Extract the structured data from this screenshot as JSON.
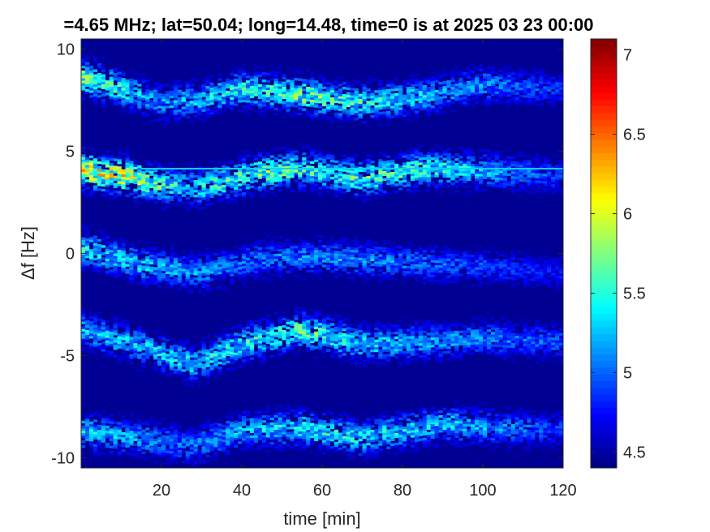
{
  "chart_data": {
    "type": "heatmap",
    "title": "=4.65 MHz;  lat=50.04; long=14.48, time=0 is at 2025 03 23 00:00",
    "xlabel": "time [min]",
    "ylabel": "Δf [Hz]",
    "xlim": [
      0,
      120
    ],
    "ylim": [
      -10.5,
      10.5
    ],
    "x_ticks": [
      20,
      40,
      60,
      80,
      100,
      120
    ],
    "x_tick_labels": [
      "20",
      "40",
      "60",
      "80",
      "100",
      "120"
    ],
    "y_ticks": [
      -10,
      -5,
      0,
      5,
      10
    ],
    "y_tick_labels": [
      "-10",
      "-5",
      "0",
      "5",
      "10"
    ],
    "colorbar": {
      "colormap": "jet",
      "clim": [
        4.4,
        7.1
      ],
      "ticks": [
        4.5,
        5,
        5.5,
        6,
        6.5,
        7
      ],
      "tick_labels": [
        "4.5",
        "5",
        "5.5",
        "6",
        "6.5",
        "7"
      ]
    },
    "background_value": 4.45,
    "carrier_line": {
      "df": 4.15,
      "t_start": 15,
      "t_end": 120,
      "value": 5.3
    },
    "bands": [
      {
        "center_df": 8.3,
        "trace": [
          [
            0,
            8.6
          ],
          [
            10,
            8.0
          ],
          [
            20,
            7.3
          ],
          [
            30,
            7.5
          ],
          [
            40,
            8.0
          ],
          [
            55,
            7.7
          ],
          [
            70,
            7.3
          ],
          [
            85,
            7.6
          ],
          [
            100,
            8.2
          ],
          [
            120,
            8.0
          ]
        ],
        "peak": [
          [
            0,
            5.9
          ],
          [
            20,
            5.2
          ],
          [
            55,
            5.8
          ],
          [
            90,
            5.3
          ],
          [
            120,
            4.9
          ]
        ]
      },
      {
        "center_df": 3.8,
        "trace": [
          [
            0,
            4.0
          ],
          [
            12,
            3.7
          ],
          [
            20,
            3.3
          ],
          [
            30,
            3.2
          ],
          [
            45,
            3.9
          ],
          [
            55,
            4.1
          ],
          [
            70,
            3.6
          ],
          [
            85,
            4.1
          ],
          [
            100,
            4.0
          ],
          [
            120,
            3.7
          ]
        ],
        "peak": [
          [
            0,
            6.3
          ],
          [
            12,
            6.1
          ],
          [
            25,
            5.4
          ],
          [
            45,
            5.8
          ],
          [
            60,
            5.6
          ],
          [
            80,
            5.7
          ],
          [
            120,
            4.9
          ]
        ]
      },
      {
        "center_df": -0.4,
        "trace": [
          [
            0,
            0.2
          ],
          [
            15,
            -0.6
          ],
          [
            30,
            -1.0
          ],
          [
            45,
            -0.3
          ],
          [
            60,
            -0.2
          ],
          [
            80,
            -0.5
          ],
          [
            100,
            -0.7
          ],
          [
            120,
            -1.0
          ]
        ],
        "peak": [
          [
            0,
            5.5
          ],
          [
            40,
            5.1
          ],
          [
            70,
            5.2
          ],
          [
            120,
            4.8
          ]
        ]
      },
      {
        "center_df": -4.5,
        "trace": [
          [
            0,
            -3.8
          ],
          [
            15,
            -4.6
          ],
          [
            28,
            -5.5
          ],
          [
            40,
            -4.5
          ],
          [
            55,
            -3.8
          ],
          [
            70,
            -4.5
          ],
          [
            85,
            -4.4
          ],
          [
            100,
            -4.2
          ],
          [
            120,
            -4.4
          ]
        ],
        "peak": [
          [
            0,
            5.3
          ],
          [
            40,
            5.5
          ],
          [
            55,
            5.7
          ],
          [
            80,
            5.3
          ],
          [
            120,
            5.0
          ]
        ]
      },
      {
        "center_df": -9.0,
        "trace": [
          [
            0,
            -8.8
          ],
          [
            15,
            -9.1
          ],
          [
            28,
            -9.5
          ],
          [
            40,
            -8.7
          ],
          [
            55,
            -8.6
          ],
          [
            70,
            -9.1
          ],
          [
            90,
            -8.4
          ],
          [
            105,
            -8.6
          ],
          [
            120,
            -8.7
          ]
        ],
        "peak": [
          [
            0,
            5.4
          ],
          [
            25,
            5.1
          ],
          [
            55,
            5.5
          ],
          [
            92,
            5.4
          ],
          [
            120,
            4.9
          ]
        ]
      }
    ]
  }
}
